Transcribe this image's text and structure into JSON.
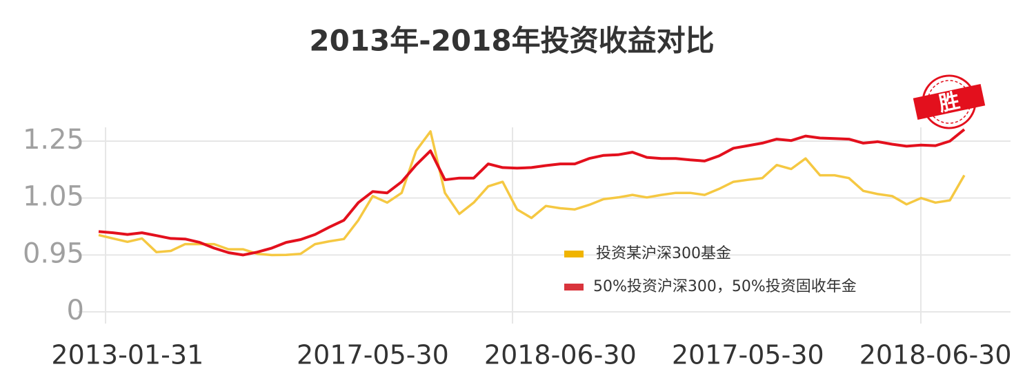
{
  "chart_data": {
    "type": "line",
    "title": "2013年-2018年投资收益对比",
    "badge": "胜",
    "categories": [
      null,
      null,
      "2013-01-31",
      null,
      null,
      null,
      null,
      null,
      null,
      null,
      null,
      null,
      null,
      null,
      null,
      null,
      null,
      null,
      null,
      "2017-05-30",
      null,
      null,
      null,
      null,
      null,
      null,
      null,
      null,
      null,
      null,
      null,
      null,
      "2018-06-30",
      null,
      null,
      null,
      null,
      null,
      null,
      null,
      null,
      null,
      null,
      null,
      null,
      "2017-05-30",
      null,
      null,
      null,
      null,
      null,
      null,
      null,
      null,
      null,
      null,
      null,
      null,
      "2018-06-30",
      null,
      null
    ],
    "series": [
      {
        "name": "投资某沪深300基金",
        "color": "#f5c842",
        "legend_color": "#f0b400",
        "values": [
          0.985,
          0.979,
          0.973,
          0.979,
          0.955,
          0.957,
          0.969,
          0.969,
          0.969,
          0.96,
          0.96,
          0.952,
          0.948,
          0.95,
          0.952,
          0.969,
          0.974,
          0.978,
          1.011,
          1.057,
          1.042,
          1.068,
          1.216,
          1.284,
          1.068,
          1.022,
          1.042,
          1.091,
          1.107,
          1.03,
          1.015,
          1.036,
          1.032,
          1.03,
          1.038,
          1.048,
          1.052,
          1.061,
          1.052,
          1.061,
          1.068,
          1.068,
          1.061,
          1.082,
          1.107,
          1.114,
          1.12,
          1.166,
          1.152,
          1.189,
          1.13,
          1.13,
          1.12,
          1.075,
          1.064,
          1.057,
          1.039,
          1.05,
          1.042,
          1.046,
          1.13
        ]
      },
      {
        "name": "50%投资沪深300，50%投资固收年金",
        "color": "#e3101d",
        "legend_color": "#d9343c",
        "values": [
          0.991,
          0.989,
          0.986,
          0.989,
          0.984,
          0.979,
          0.978,
          0.972,
          0.962,
          0.954,
          0.949,
          0.955,
          0.962,
          0.972,
          0.977,
          0.986,
          0.999,
          1.011,
          1.042,
          1.073,
          1.068,
          1.107,
          1.166,
          1.216,
          1.114,
          1.12,
          1.12,
          1.17,
          1.157,
          1.155,
          1.157,
          1.164,
          1.17,
          1.17,
          1.189,
          1.2,
          1.202,
          1.211,
          1.193,
          1.189,
          1.189,
          1.184,
          1.18,
          1.198,
          1.225,
          1.234,
          1.243,
          1.257,
          1.252,
          1.268,
          1.261,
          1.259,
          1.257,
          1.243,
          1.248,
          1.239,
          1.232,
          1.236,
          1.234,
          1.25,
          1.291
        ]
      }
    ],
    "ylim": [
      0,
      1.25
    ],
    "yticks": [
      0,
      0.95,
      1.05,
      1.25
    ],
    "grid": true,
    "legend": "center"
  }
}
